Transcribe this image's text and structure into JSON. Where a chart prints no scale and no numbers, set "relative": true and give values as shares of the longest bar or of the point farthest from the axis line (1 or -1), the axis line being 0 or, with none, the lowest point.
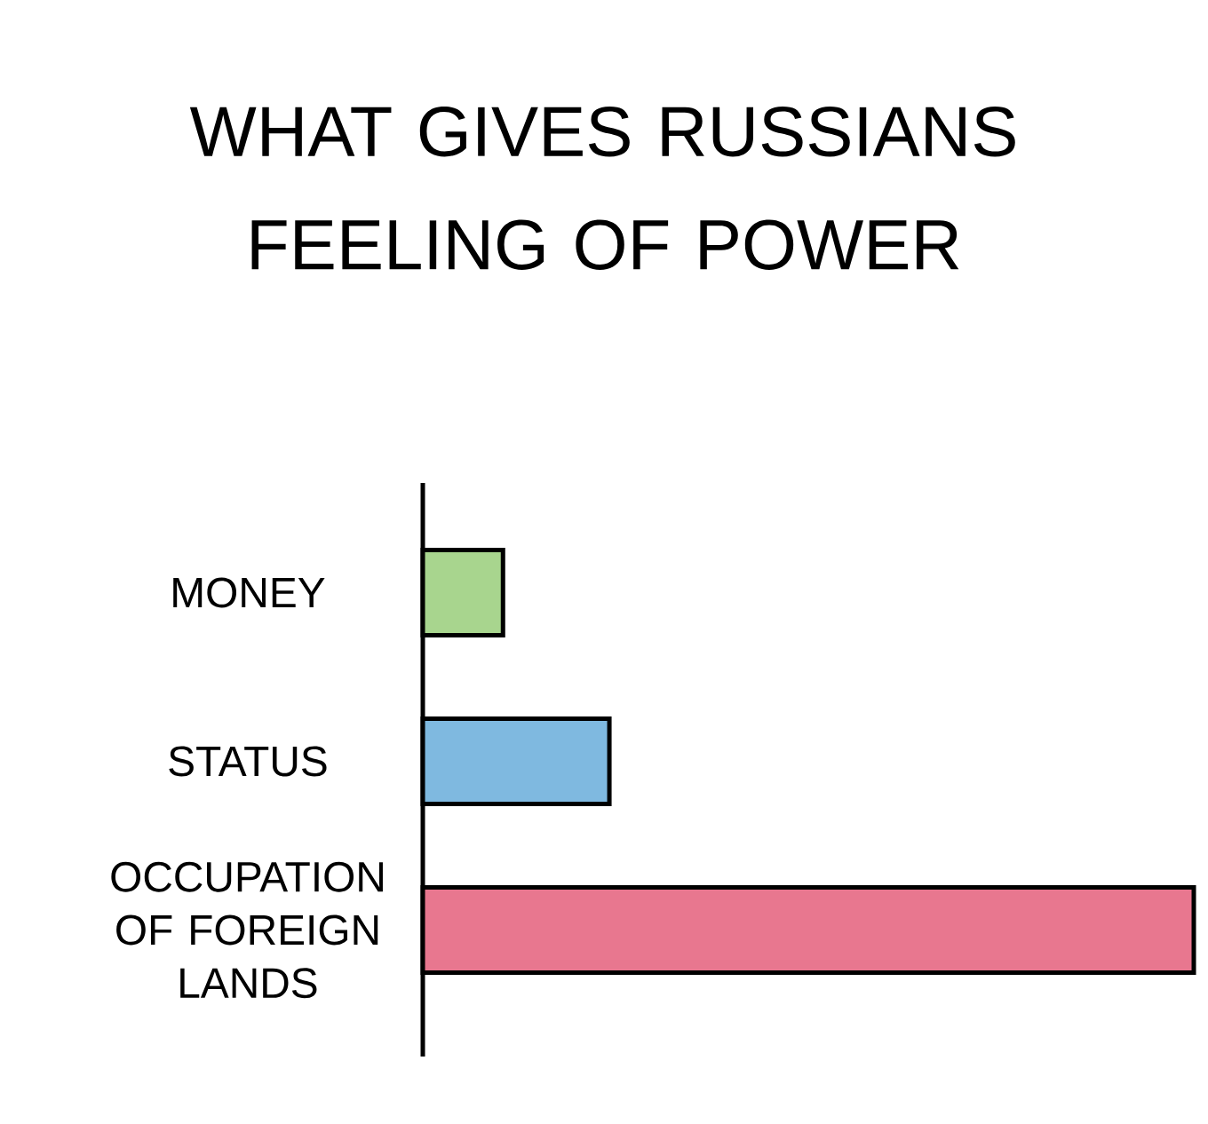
{
  "chart_data": {
    "type": "bar",
    "orientation": "horizontal",
    "relative": true,
    "title": "WHAT GIVES RUSSIANS FEELING OF POWER",
    "categories": [
      "MONEY",
      "STATUS",
      "OCCUPATION OF FOREIGN LANDS"
    ],
    "values": [
      0.104,
      0.242,
      1
    ],
    "colors": [
      "#a8d58e",
      "#7fb9e0",
      "#e8778f"
    ]
  }
}
